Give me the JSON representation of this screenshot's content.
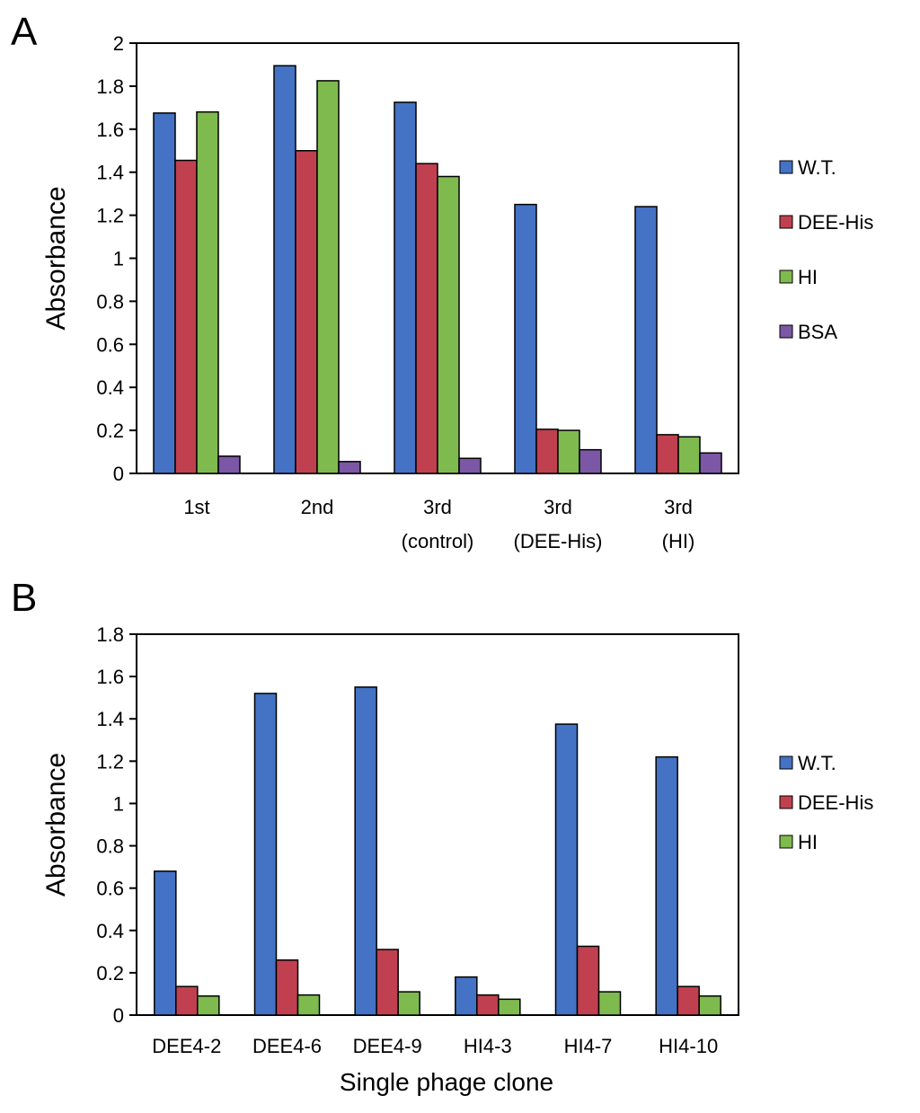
{
  "chart_data": [
    {
      "panel_label": "A",
      "type": "bar",
      "ylabel": "Absorbance",
      "xlabel": "",
      "ylim": [
        0,
        2
      ],
      "ytick_labels": [
        "0",
        "0.2",
        "0.4",
        "0.6",
        "0.8",
        "1",
        "1.2",
        "1.4",
        "1.6",
        "1.8",
        "2"
      ],
      "yticks": [
        0,
        0.2,
        0.4,
        0.6,
        0.8,
        1,
        1.2,
        1.4,
        1.6,
        1.8,
        2
      ],
      "categories": [
        [
          "1st"
        ],
        [
          "2nd"
        ],
        [
          "3rd",
          "(control)"
        ],
        [
          "3rd",
          "(DEE-His)"
        ],
        [
          "3rd",
          "(HI)"
        ]
      ],
      "series": [
        {
          "name": "W.T.",
          "color": "#4472c4",
          "values": [
            1.675,
            1.895,
            1.725,
            1.25,
            1.24
          ]
        },
        {
          "name": "DEE-His",
          "color": "#c0404f",
          "values": [
            1.455,
            1.5,
            1.44,
            0.205,
            0.18
          ]
        },
        {
          "name": "HI",
          "color": "#7fba4e",
          "values": [
            1.68,
            1.825,
            1.38,
            0.2,
            0.17
          ]
        },
        {
          "name": "BSA",
          "color": "#7b57a6",
          "values": [
            0.08,
            0.055,
            0.07,
            0.11,
            0.095
          ]
        }
      ],
      "legend": "right"
    },
    {
      "panel_label": "B",
      "type": "bar",
      "ylabel": "Absorbance",
      "xlabel": "Single phage clone",
      "ylim": [
        0,
        1.8
      ],
      "ytick_labels": [
        "0",
        "0.2",
        "0.4",
        "0.6",
        "0.8",
        "1",
        "1.2",
        "1.4",
        "1.6",
        "1.8"
      ],
      "yticks": [
        0,
        0.2,
        0.4,
        0.6,
        0.8,
        1,
        1.2,
        1.4,
        1.6,
        1.8
      ],
      "categories": [
        [
          "DEE4-2"
        ],
        [
          "DEE4-6"
        ],
        [
          "DEE4-9"
        ],
        [
          "HI4-3"
        ],
        [
          "HI4-7"
        ],
        [
          "HI4-10"
        ]
      ],
      "series": [
        {
          "name": "W.T.",
          "color": "#4472c4",
          "values": [
            0.68,
            1.52,
            1.55,
            0.18,
            1.375,
            1.22
          ]
        },
        {
          "name": "DEE-His",
          "color": "#c0404f",
          "values": [
            0.135,
            0.26,
            0.31,
            0.095,
            0.325,
            0.135
          ]
        },
        {
          "name": "HI",
          "color": "#7fba4e",
          "values": [
            0.09,
            0.095,
            0.11,
            0.075,
            0.11,
            0.09
          ]
        }
      ],
      "legend": "right"
    }
  ]
}
